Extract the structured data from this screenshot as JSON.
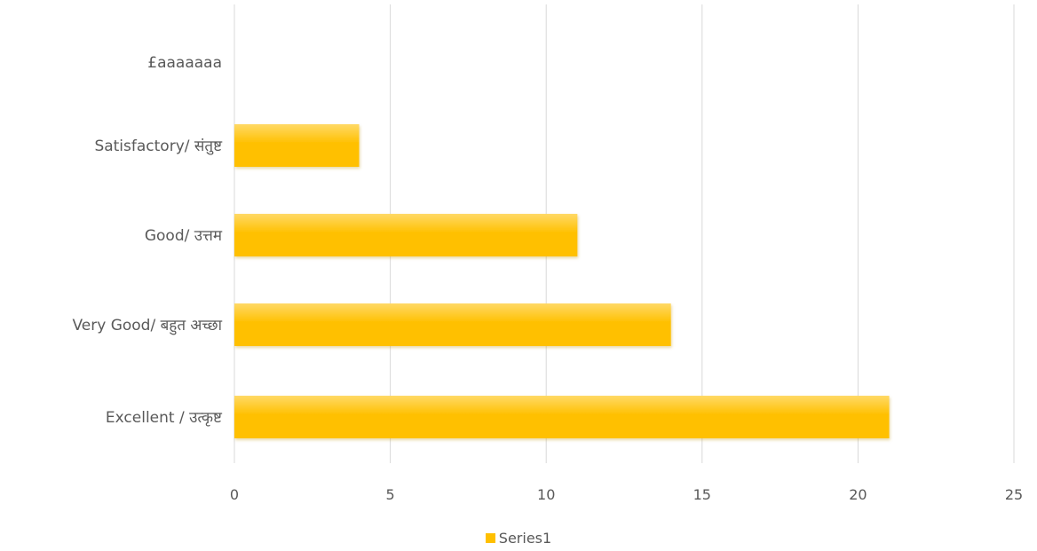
{
  "chart_data": {
    "type": "bar",
    "orientation": "horizontal",
    "categories": [
      "£aaaaaaa",
      "Satisfactory/ संतुष्ट",
      "Good/ उत्तम",
      "Very Good/ बहुत  अच्छा",
      "Excellent / उत्कृष्ट"
    ],
    "series": [
      {
        "name": "Series1",
        "values": [
          0,
          4,
          11,
          14,
          21
        ]
      }
    ],
    "xlim": [
      0,
      25
    ],
    "xticks": [
      "0",
      "5",
      "10",
      "15",
      "20",
      "25"
    ],
    "grid": true,
    "legend_position": "bottom",
    "bar_color": "#ffc000",
    "bar_highlight_color": "#ffd966",
    "bar_shadow_color": "#bf9000",
    "grid_color": "#d9d9d9",
    "text_color": "#595959"
  }
}
